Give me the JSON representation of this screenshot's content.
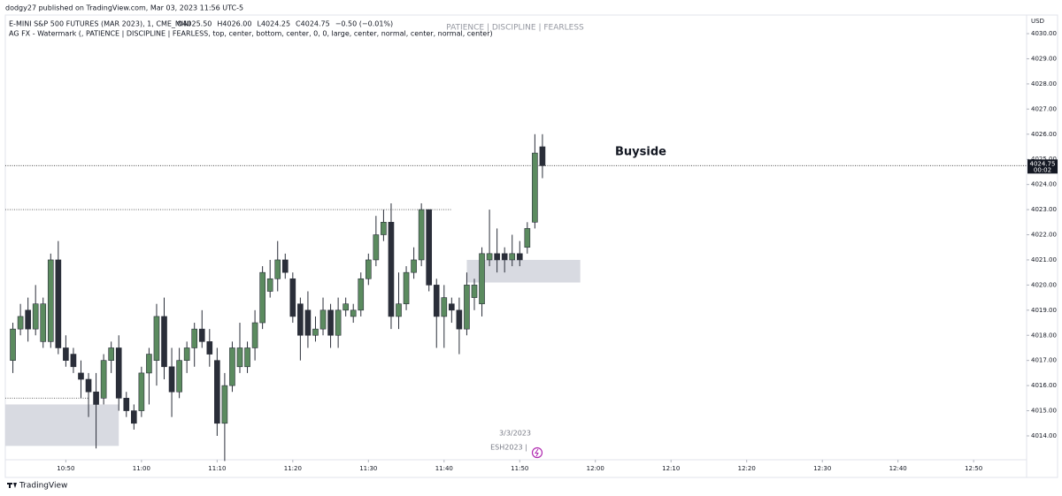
{
  "header": {
    "publisher": "dodgy27 published on TradingView.com, Mar 03, 2023 11:56 UTC-5",
    "symbol": "E-MINI S&P 500 FUTURES (MAR 2023), 1, CME_MINI",
    "ohlc": [
      "O4025.50",
      "H4026.00",
      "L4024.25",
      "C4024.75",
      "−0.50 (−0.01%)"
    ],
    "indicator": "AG FX - Watermark (, PATIENCE  |  DISCIPLINE  |  FEARLESS, top, center, bottom, center, 0, 0, large, center, normal, center, normal, center)"
  },
  "watermark": "PATIENCE   |   DISCIPLINE   |   FEARLESS",
  "footer": "TradingView",
  "chart_data": {
    "type": "candlestick",
    "currency": "USD",
    "x": [
      "10:43",
      "10:44",
      "10:45",
      "10:46",
      "10:47",
      "10:48",
      "10:49",
      "10:50",
      "10:51",
      "10:52",
      "10:53",
      "10:54",
      "10:55",
      "10:56",
      "10:57",
      "10:58",
      "10:59",
      "11:00",
      "11:01",
      "11:02",
      "11:03",
      "11:04",
      "11:05",
      "11:06",
      "11:07",
      "11:08",
      "11:09",
      "11:10",
      "11:11",
      "11:12",
      "11:13",
      "11:14",
      "11:15",
      "11:16",
      "11:17",
      "11:18",
      "11:19",
      "11:20",
      "11:21",
      "11:22",
      "11:23",
      "11:24",
      "11:25",
      "11:26",
      "11:27",
      "11:28",
      "11:29",
      "11:30",
      "11:31",
      "11:32",
      "11:33",
      "11:34",
      "11:35",
      "11:36",
      "11:37",
      "11:38",
      "11:39",
      "11:40",
      "11:41",
      "11:42",
      "11:43",
      "11:44",
      "11:45",
      "11:46",
      "11:47",
      "11:48",
      "11:49",
      "11:50",
      "11:51",
      "11:52",
      "11:53"
    ],
    "open": [
      4017.0,
      4018.25,
      4019.0,
      4018.25,
      4017.75,
      4017.75,
      4021.0,
      4017.5,
      4017.25,
      4016.5,
      4016.25,
      4015.75,
      4015.5,
      4017.0,
      4017.5,
      4015.5,
      4015.0,
      4015.0,
      4016.5,
      4017.0,
      4018.75,
      4016.75,
      4015.75,
      4017.0,
      4017.5,
      4018.25,
      4017.75,
      4017.0,
      4014.5,
      4016.0,
      4016.75,
      4016.75,
      4017.5,
      4018.5,
      4019.75,
      4020.25,
      4021.0,
      4020.25,
      4019.25,
      4019.0,
      4018.0,
      4018.25,
      4019.0,
      4018.0,
      4019.0,
      4018.75,
      4019.0,
      4020.25,
      4021.0,
      4022.0,
      4022.5,
      4018.75,
      4019.25,
      4020.5,
      4021.0,
      4023.0,
      4020.0,
      4018.75,
      4019.25,
      4019.0,
      4018.25,
      4019.5,
      4019.25,
      4021.0,
      4021.25,
      4021.25,
      4021.0,
      4021.25,
      4021.5,
      4022.5,
      4025.5
    ],
    "high": [
      4018.5,
      4019.25,
      4019.5,
      4020.0,
      4019.5,
      4021.25,
      4021.75,
      4018.0,
      4017.5,
      4017.0,
      4016.5,
      4016.5,
      4017.25,
      4017.75,
      4018.0,
      4015.75,
      4015.25,
      4016.75,
      4017.5,
      4019.25,
      4019.5,
      4017.5,
      4017.5,
      4017.75,
      4018.5,
      4019.0,
      4018.25,
      4017.5,
      4016.5,
      4017.75,
      4018.5,
      4017.75,
      4019.0,
      4020.75,
      4021.0,
      4021.75,
      4021.25,
      4020.5,
      4019.5,
      4019.75,
      4018.75,
      4019.5,
      4019.25,
      4019.5,
      4019.5,
      4019.25,
      4020.5,
      4021.25,
      4022.75,
      4023.0,
      4023.25,
      4020.5,
      4020.75,
      4021.5,
      4023.25,
      4023.0,
      4020.25,
      4020.0,
      4019.5,
      4019.5,
      4020.5,
      4020.25,
      4021.5,
      4023.0,
      4022.25,
      4021.5,
      4022.0,
      4021.75,
      4022.5,
      4026.0,
      4026.0
    ],
    "low": [
      4016.5,
      4018.0,
      4017.75,
      4018.0,
      4017.5,
      4017.5,
      4017.25,
      4016.75,
      4016.5,
      4015.5,
      4014.75,
      4013.5,
      4015.25,
      4016.5,
      4015.0,
      4014.75,
      4014.25,
      4014.75,
      4015.25,
      4016.0,
      4016.25,
      4014.75,
      4015.5,
      4016.5,
      4016.75,
      4017.5,
      4016.75,
      4014.0,
      4013.0,
      4015.75,
      4016.5,
      4016.5,
      4017.0,
      4018.25,
      4019.5,
      4019.75,
      4020.25,
      4018.5,
      4017.0,
      4017.5,
      4017.75,
      4018.0,
      4017.5,
      4017.5,
      4018.75,
      4018.5,
      4018.75,
      4020.0,
      4020.75,
      4021.75,
      4018.25,
      4018.25,
      4019.0,
      4020.25,
      4020.75,
      4019.75,
      4017.5,
      4017.5,
      4018.5,
      4017.25,
      4018.0,
      4019.0,
      4018.75,
      4020.75,
      4020.5,
      4020.5,
      4020.75,
      4020.75,
      4021.25,
      4022.25,
      4024.25
    ],
    "close": [
      4018.25,
      4018.75,
      4018.25,
      4019.25,
      4019.25,
      4021.0,
      4017.5,
      4017.0,
      4016.75,
      4016.25,
      4015.75,
      4015.25,
      4017.0,
      4017.5,
      4015.5,
      4015.0,
      4014.5,
      4016.5,
      4017.25,
      4018.75,
      4016.75,
      4015.75,
      4017.0,
      4017.5,
      4018.25,
      4017.75,
      4017.25,
      4014.5,
      4016.0,
      4017.5,
      4017.5,
      4017.5,
      4018.5,
      4020.5,
      4020.25,
      4021.0,
      4020.5,
      4018.75,
      4018.0,
      4018.0,
      4018.25,
      4019.0,
      4018.0,
      4019.0,
      4019.25,
      4019.0,
      4020.25,
      4021.0,
      4022.0,
      4022.5,
      4018.75,
      4019.25,
      4020.5,
      4021.0,
      4023.0,
      4020.0,
      4018.75,
      4019.5,
      4019.0,
      4018.25,
      4020.0,
      4020.0,
      4021.25,
      4021.25,
      4021.0,
      4021.0,
      4021.25,
      4021.0,
      4022.25,
      4025.25,
      4024.75
    ],
    "up_color": "#5b8b5f",
    "down_color": "#2a2e39",
    "wick_color": "#2a2e39",
    "xlim": [
      "10:42",
      "12:57"
    ],
    "xticks": [
      "10:50",
      "11:00",
      "11:10",
      "11:20",
      "11:30",
      "11:40",
      "11:50",
      "12:00",
      "12:10",
      "12:20",
      "12:30",
      "12:40",
      "12:50"
    ],
    "ylim": [
      4013.05,
      4030.74
    ],
    "yticks": [
      {
        "value": 4014,
        "label": "4014.00"
      },
      {
        "value": 4015,
        "label": "4015.00"
      },
      {
        "value": 4016,
        "label": "4016.00"
      },
      {
        "value": 4017,
        "label": "4017.00"
      },
      {
        "value": 4018,
        "label": "4018.00"
      },
      {
        "value": 4019,
        "label": "4019.00"
      },
      {
        "value": 4020,
        "label": "4020.00"
      },
      {
        "value": 4021,
        "label": "4021.00"
      },
      {
        "value": 4022,
        "label": "4022.00"
      },
      {
        "value": 4023,
        "label": "4023.00"
      },
      {
        "value": 4024,
        "label": "4024.00"
      },
      {
        "value": 4025,
        "label": "4025.00"
      },
      {
        "value": 4026,
        "label": "4026.00"
      },
      {
        "value": 4027,
        "label": "4027.00"
      },
      {
        "value": 4028,
        "label": "4028.00"
      },
      {
        "value": 4029,
        "label": "4029.00"
      },
      {
        "value": 4030,
        "label": "4030.00"
      }
    ],
    "last_price": 4024.75,
    "countdown": "00:02",
    "zones": [
      {
        "from": "10:42",
        "to": "10:57",
        "top": 4015.25,
        "bottom": 4013.6
      },
      {
        "from": "11:43",
        "to": "11:58",
        "top": 4021.0,
        "bottom": 4020.1
      }
    ],
    "levels": [
      {
        "price": 4023.0,
        "from": "10:42",
        "to": "11:41"
      },
      {
        "price": 4015.5,
        "from": "10:42",
        "to": "10:53"
      }
    ],
    "annotation": "Buyside",
    "session_date": "3/3/2023",
    "contract": "ESH2023  |"
  }
}
